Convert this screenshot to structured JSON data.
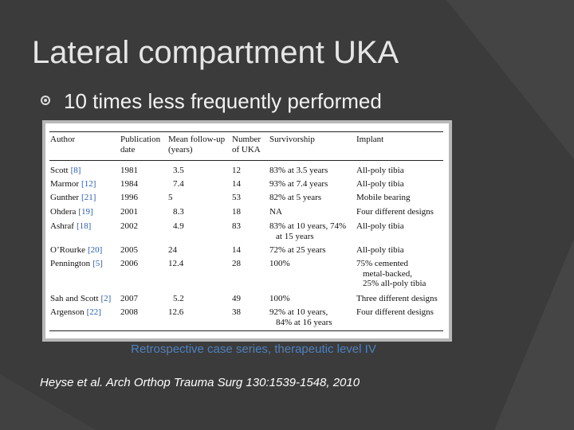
{
  "title": "Lateral compartment UKA",
  "bullet": "10 times less frequently performed",
  "table": {
    "header": [
      [
        "Author"
      ],
      [
        "Publication",
        "date"
      ],
      [
        "Mean follow-up",
        "(years)"
      ],
      [
        "Number",
        "of UKA"
      ],
      [
        "Survivorship"
      ],
      [
        "Implant"
      ]
    ],
    "rows": [
      {
        "author": "Scott",
        "ref": "[8]",
        "date": "1981",
        "followup": "3.5",
        "number": "12",
        "survivorship": [
          "83% at 3.5 years"
        ],
        "implant": [
          "All-poly tibia"
        ]
      },
      {
        "author": "Marmor",
        "ref": "[12]",
        "date": "1984",
        "followup": "7.4",
        "number": "14",
        "survivorship": [
          "93% at 7.4 years"
        ],
        "implant": [
          "All-poly tibia"
        ]
      },
      {
        "author": "Gunther",
        "ref": "[21]",
        "date": "1996",
        "followup": "5",
        "number": "53",
        "survivorship": [
          "82% at 5 years"
        ],
        "implant": [
          "Mobile bearing"
        ]
      },
      {
        "author": "Ohdera",
        "ref": "[19]",
        "date": "2001",
        "followup": "8.3",
        "number": "18",
        "survivorship": [
          "NA"
        ],
        "implant": [
          "Four different designs"
        ]
      },
      {
        "author": "Ashraf",
        "ref": "[18]",
        "date": "2002",
        "followup": "4.9",
        "number": "83",
        "survivorship": [
          "83% at 10 years, 74%",
          "at 15 years"
        ],
        "implant": [
          "All-poly tibia"
        ]
      },
      {
        "author": "O’Rourke",
        "ref": "[20]",
        "date": "2005",
        "followup": "24",
        "number": "14",
        "survivorship": [
          "72% at 25 years"
        ],
        "implant": [
          "All-poly tibia"
        ]
      },
      {
        "author": "Pennington",
        "ref": "[5]",
        "date": "2006",
        "followup": "12.4",
        "number": "28",
        "survivorship": [
          "100%"
        ],
        "implant": [
          "75% cemented",
          "metal-backed,",
          "25% all-poly tibia"
        ]
      },
      {
        "author": "Sah and Scott",
        "ref": "[2]",
        "date": "2007",
        "followup": "5.2",
        "number": "49",
        "survivorship": [
          "100%"
        ],
        "implant": [
          "Three different designs"
        ]
      },
      {
        "author": "Argenson",
        "ref": "[22]",
        "date": "2008",
        "followup": "12.6",
        "number": "38",
        "survivorship": [
          "92% at 10 years,",
          "84% at 16 years"
        ],
        "implant": [
          "Four different designs"
        ]
      }
    ]
  },
  "caption": "Retrospective case series, therapeutic level IV",
  "citation": "Heyse et al. Arch Orthop Trauma Surg 130:1539-1548, 2010"
}
